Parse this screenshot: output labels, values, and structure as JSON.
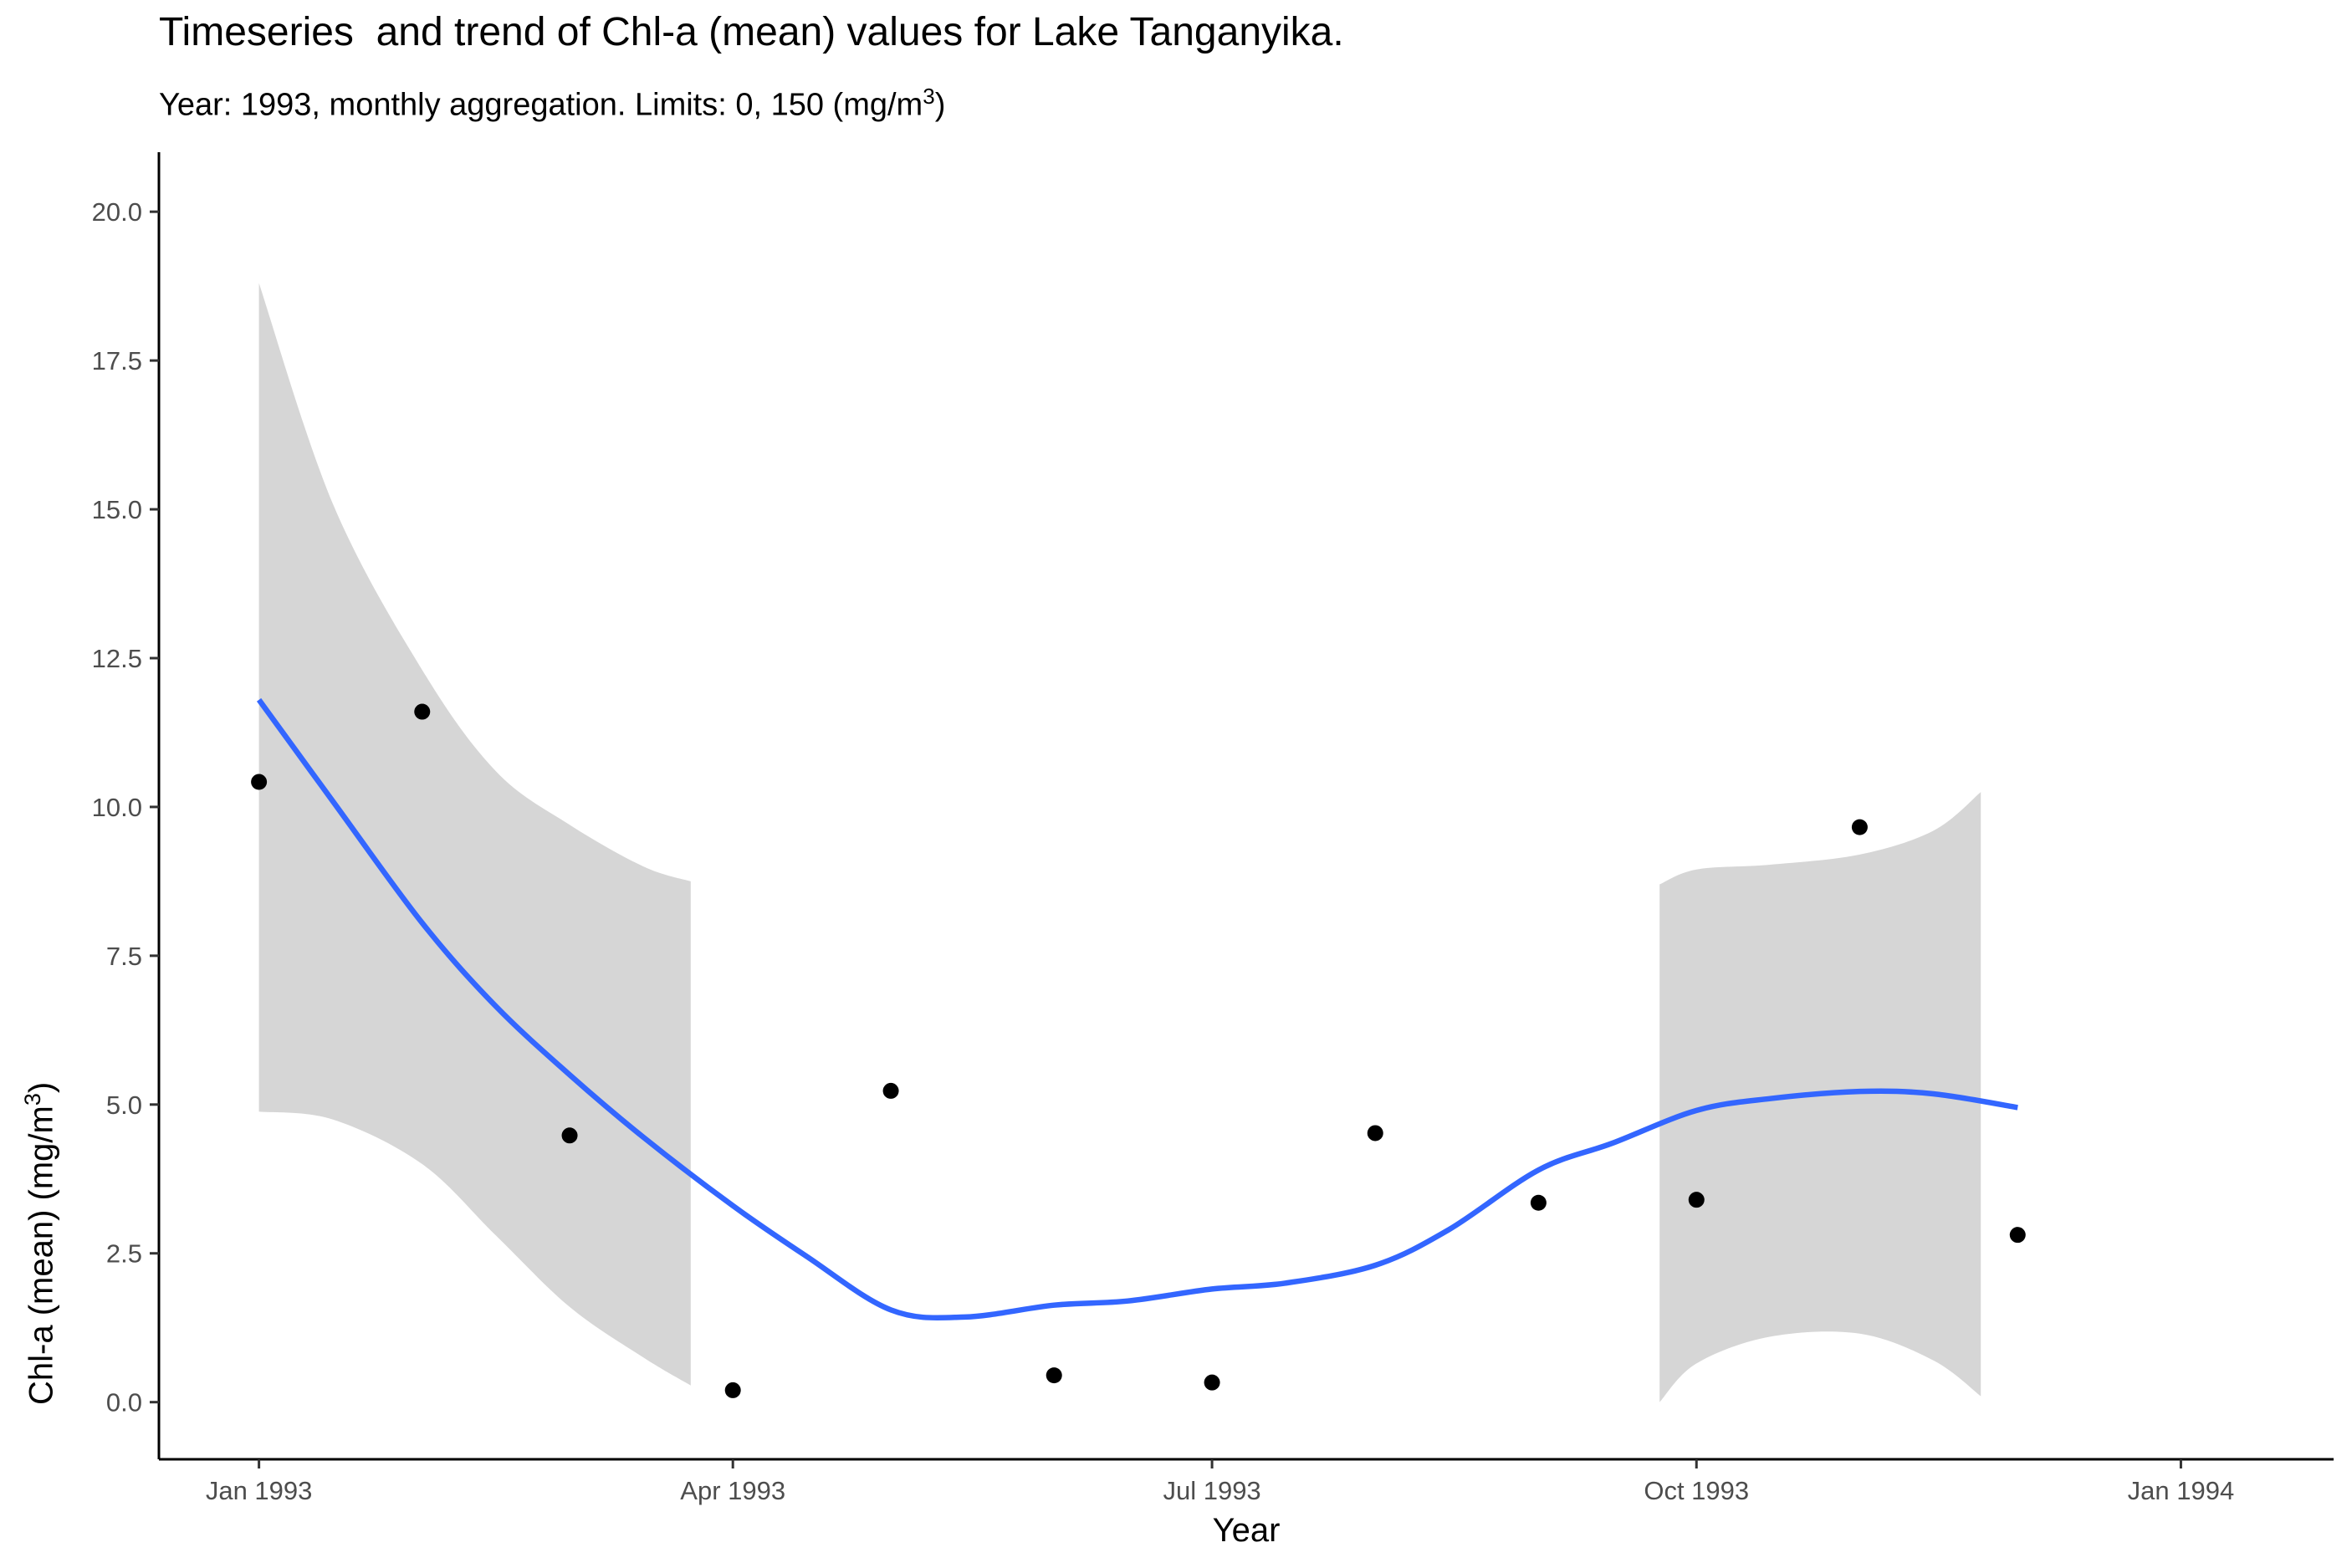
{
  "chart_data": {
    "type": "scatter",
    "title": "Timeseries  and trend of Chl-a (mean) values for Lake Tanganyika.",
    "subtitle": {
      "text": "Year: 1993, monthly aggregation. Limits: 0, 150 (mg/m",
      "superscript": "3",
      "close": ")"
    },
    "xlabel": "Year",
    "ylabel": {
      "text": "Chl-a (mean) (mg/m",
      "superscript": "3",
      "close": ")"
    },
    "x_ticks": [
      "Jan 1993",
      "Apr 1993",
      "Jul 1993",
      "Oct 1993",
      "Jan 1994"
    ],
    "x_tick_dates": [
      "1993-01-01",
      "1993-04-01",
      "1993-07-01",
      "1993-10-01",
      "1994-01-01"
    ],
    "xlim": [
      "1992-12-13",
      "1994-01-30"
    ],
    "y_ticks": [
      "0.0",
      "2.5",
      "5.0",
      "7.5",
      "10.0",
      "12.5",
      "15.0",
      "17.5",
      "20.0"
    ],
    "ylim": [
      -0.96,
      21.0
    ],
    "grid": false,
    "legend": "none",
    "points": {
      "x": [
        "1993-01-01",
        "1993-02-01",
        "1993-03-01",
        "1993-04-01",
        "1993-05-01",
        "1993-06-01",
        "1993-07-01",
        "1993-08-01",
        "1993-09-01",
        "1993-10-01",
        "1993-11-01",
        "1993-12-01"
      ],
      "y": [
        10.42,
        11.6,
        4.48,
        0.2,
        5.23,
        0.45,
        0.33,
        4.52,
        3.35,
        3.4,
        9.66,
        2.81
      ],
      "color": "#000000"
    },
    "trend": {
      "color": "#3366FF",
      "x": [
        "1993-01-01",
        "1993-01-15",
        "1993-02-01",
        "1993-02-15",
        "1993-03-01",
        "1993-03-15",
        "1993-04-01",
        "1993-04-15",
        "1993-05-01",
        "1993-05-15",
        "1993-06-01",
        "1993-06-15",
        "1993-07-01",
        "1993-07-15",
        "1993-08-01",
        "1993-08-15",
        "1993-09-01",
        "1993-09-15",
        "1993-10-01",
        "1993-10-15",
        "1993-11-01",
        "1993-11-15",
        "1993-12-01"
      ],
      "y": [
        11.8,
        10.1,
        8.05,
        6.65,
        5.5,
        4.45,
        3.3,
        2.45,
        1.55,
        1.43,
        1.63,
        1.7,
        1.9,
        2.0,
        2.3,
        2.9,
        3.9,
        4.35,
        4.9,
        5.1,
        5.22,
        5.18,
        4.95
      ]
    },
    "ribbon_segments": [
      {
        "x": [
          "1993-01-01",
          "1993-01-15",
          "1993-02-01",
          "1993-02-15",
          "1993-03-01",
          "1993-03-15",
          "1993-03-24"
        ],
        "upper": [
          18.8,
          15.1,
          12.3,
          10.6,
          9.7,
          9.0,
          8.75
        ],
        "lower": [
          4.88,
          4.75,
          4.0,
          2.8,
          1.6,
          0.75,
          0.28
        ]
      },
      {
        "x": [
          "1993-09-24",
          "1993-10-01",
          "1993-10-15",
          "1993-11-01",
          "1993-11-15",
          "1993-11-24"
        ],
        "upper": [
          8.7,
          8.95,
          9.03,
          9.2,
          9.6,
          10.25
        ],
        "lower": [
          0.0,
          0.65,
          1.1,
          1.15,
          0.7,
          0.1
        ]
      }
    ],
    "ribbon_color": "#d6d6d6"
  }
}
